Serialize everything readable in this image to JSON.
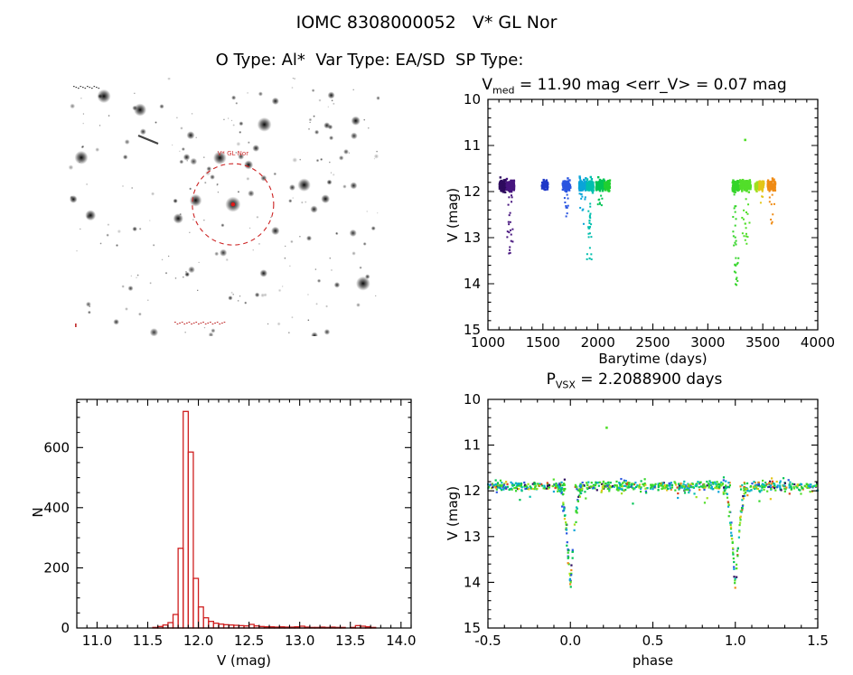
{
  "page": {
    "title": "IOMC 8308000052   V* GL Nor",
    "subtitle": "O Type: Al*  Var Type: EA/SD  SP Type:"
  },
  "finding_chart": {
    "target_label": "V* GL Nor",
    "circle_color": "#cc2222"
  },
  "chart_data": [
    {
      "id": "lightcurve",
      "type": "scatter",
      "title": "V_med = 11.90 mag <err_V> = 0.07 mag",
      "title_parts": {
        "pre": "V",
        "sub": "med",
        "post": " = 11.90 mag <err_V> = 0.07 mag"
      },
      "stats": {
        "v_med_mag": 11.9,
        "err_v_mag": 0.07
      },
      "xlabel": "Barytime (days)",
      "ylabel": "V (mag)",
      "xlim": [
        1000,
        4000
      ],
      "ylim": [
        15,
        10
      ],
      "xticks": [
        1000,
        1500,
        2000,
        2500,
        3000,
        3500,
        4000
      ],
      "yticks": [
        10,
        11,
        12,
        13,
        14,
        15
      ],
      "xdec": 0,
      "ydec": 0,
      "xdiv": 5,
      "ydiv": 5,
      "band": {
        "v": 11.87,
        "sigma": 0.055
      },
      "clusters": [
        {
          "x0": 1105,
          "x1": 1165,
          "color": "#2e0b5e",
          "n": 130
        },
        {
          "x0": 1170,
          "x1": 1240,
          "color": "#47157e",
          "n": 140,
          "tail_to": 13.35,
          "tail_n": 22
        },
        {
          "x0": 1490,
          "x1": 1545,
          "color": "#2038c8",
          "n": 70
        },
        {
          "x0": 1680,
          "x1": 1750,
          "color": "#2a55e0",
          "n": 110,
          "tail_to": 12.55,
          "tail_n": 12
        },
        {
          "x0": 1830,
          "x1": 1900,
          "color": "#0aa4d8",
          "n": 120,
          "tail_to": 12.9,
          "tail_n": 10
        },
        {
          "x0": 1900,
          "x1": 1960,
          "color": "#00bfae",
          "n": 130,
          "tail_to": 13.55,
          "tail_n": 26
        },
        {
          "x0": 1985,
          "x1": 2060,
          "color": "#00c455",
          "n": 150,
          "tail_to": 12.35,
          "tail_n": 8
        },
        {
          "x0": 2060,
          "x1": 2110,
          "color": "#20cf30",
          "n": 80
        },
        {
          "x0": 3225,
          "x1": 3285,
          "color": "#35d52a",
          "n": 100,
          "tail_to": 14.05,
          "tail_n": 30
        },
        {
          "x0": 3295,
          "x1": 3390,
          "color": "#52de2a",
          "n": 190,
          "tail_to": 13.15,
          "tail_n": 18
        },
        {
          "x0": 3430,
          "x1": 3460,
          "color": "#9fe01e",
          "n": 40
        },
        {
          "x0": 3465,
          "x1": 3510,
          "color": "#e3c619",
          "n": 55,
          "tail_to": 12.25,
          "tail_n": 5
        },
        {
          "x0": 3545,
          "x1": 3615,
          "color": "#ef8b14",
          "n": 90,
          "tail_to": 12.7,
          "tail_n": 10
        }
      ],
      "outliers": [
        {
          "x": 3340,
          "v": 10.88,
          "color": "#52de2a"
        }
      ]
    },
    {
      "id": "histogram",
      "type": "bar",
      "xlabel": "V (mag)",
      "ylabel": "N",
      "xlim": [
        10.8,
        14.1
      ],
      "ylim": [
        0,
        760
      ],
      "xticks": [
        11.0,
        11.5,
        12.0,
        12.5,
        13.0,
        13.5,
        14.0
      ],
      "yticks": [
        0,
        200,
        400,
        600
      ],
      "xdec": 1,
      "ydec": 0,
      "xdiv": 5,
      "ydiv": 4,
      "color": "#cf1f1f",
      "bin_width": 0.05,
      "bins": [
        [
          11.55,
          2
        ],
        [
          11.6,
          5
        ],
        [
          11.65,
          10
        ],
        [
          11.7,
          18
        ],
        [
          11.75,
          45
        ],
        [
          11.8,
          265
        ],
        [
          11.85,
          720
        ],
        [
          11.9,
          585
        ],
        [
          11.95,
          165
        ],
        [
          12.0,
          70
        ],
        [
          12.05,
          34
        ],
        [
          12.1,
          22
        ],
        [
          12.15,
          16
        ],
        [
          12.2,
          13
        ],
        [
          12.25,
          11
        ],
        [
          12.3,
          10
        ],
        [
          12.35,
          9
        ],
        [
          12.4,
          8
        ],
        [
          12.45,
          7
        ],
        [
          12.5,
          12
        ],
        [
          12.55,
          7
        ],
        [
          12.6,
          5
        ],
        [
          12.65,
          4
        ],
        [
          12.7,
          4
        ],
        [
          12.75,
          3
        ],
        [
          12.8,
          4
        ],
        [
          12.85,
          3
        ],
        [
          12.9,
          3
        ],
        [
          12.95,
          4
        ],
        [
          13.0,
          6
        ],
        [
          13.05,
          3
        ],
        [
          13.1,
          2
        ],
        [
          13.15,
          2
        ],
        [
          13.2,
          3
        ],
        [
          13.25,
          2
        ],
        [
          13.3,
          3
        ],
        [
          13.35,
          2
        ],
        [
          13.4,
          2
        ],
        [
          13.5,
          2
        ],
        [
          13.55,
          8
        ],
        [
          13.6,
          6
        ],
        [
          13.65,
          4
        ],
        [
          13.7,
          2
        ]
      ]
    },
    {
      "id": "phase_curve",
      "type": "scatter",
      "title": "P_VSX = 2.2088900 days",
      "title_parts": {
        "pre": "P",
        "sub": "VSX",
        "post": " = 2.2088900 days"
      },
      "period_days": 2.20889,
      "xlabel": "phase",
      "ylabel": "V (mag)",
      "xlim": [
        -0.5,
        1.5
      ],
      "ylim": [
        15,
        10
      ],
      "xticks": [
        -0.5,
        0.0,
        0.5,
        1.0,
        1.5
      ],
      "yticks": [
        10,
        11,
        12,
        13,
        14,
        15
      ],
      "xdec": 1,
      "ydec": 0,
      "xdiv": 5,
      "ydiv": 5,
      "band": {
        "v": 11.9,
        "sigma": 0.055,
        "n": 760
      },
      "eclipse": {
        "centers": [
          0.0,
          1.0
        ],
        "half_width": 0.075,
        "depth": 2.2,
        "n_per": 85
      },
      "palette": [
        {
          "color": "#2e0b5e",
          "w": 5
        },
        {
          "color": "#2a55e0",
          "w": 6
        },
        {
          "color": "#0aa4d8",
          "w": 10
        },
        {
          "color": "#00bfae",
          "w": 10
        },
        {
          "color": "#00c455",
          "w": 14
        },
        {
          "color": "#35d52a",
          "w": 16
        },
        {
          "color": "#52de2a",
          "w": 14
        },
        {
          "color": "#9fe01e",
          "w": 5
        },
        {
          "color": "#e3c619",
          "w": 4
        },
        {
          "color": "#ef8b14",
          "w": 4
        },
        {
          "color": "#d8401a",
          "w": 3
        }
      ],
      "outliers": [
        {
          "x": 0.22,
          "v": 10.62,
          "color": "#52de2a"
        }
      ]
    }
  ]
}
